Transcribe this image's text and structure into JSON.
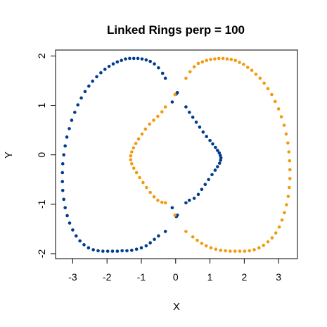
{
  "chart_data": {
    "type": "scatter",
    "title": "Linked Rings perp = 100",
    "xlabel": "X",
    "ylabel": "Y",
    "xlim": [
      -3.5,
      3.55
    ],
    "ylim": [
      -2.1,
      2.12
    ],
    "x_ticks": [
      -3,
      -2,
      -1,
      0,
      1,
      2,
      3
    ],
    "x_tick_labels": [
      "-3",
      "-2",
      "-1",
      "0",
      "1",
      "2",
      "3"
    ],
    "y_ticks": [
      -2,
      -1,
      0,
      1,
      2
    ],
    "y_tick_labels": [
      "-2",
      "-1",
      "0",
      "1",
      "2"
    ],
    "grid": false,
    "legend": "none",
    "series": [
      {
        "color": "#003c8c",
        "points": [
          [
            -0.3,
            1.55
          ],
          [
            -0.38,
            1.65
          ],
          [
            -0.5,
            1.76
          ],
          [
            -0.62,
            1.84
          ],
          [
            -0.74,
            1.89
          ],
          [
            -0.86,
            1.92
          ],
          [
            -0.98,
            1.94
          ],
          [
            -1.1,
            1.95
          ],
          [
            -1.22,
            1.95
          ],
          [
            -1.34,
            1.95
          ],
          [
            -1.46,
            1.94
          ],
          [
            -1.58,
            1.91
          ],
          [
            -1.7,
            1.88
          ],
          [
            -1.82,
            1.84
          ],
          [
            -1.94,
            1.79
          ],
          [
            -2.06,
            1.73
          ],
          [
            -2.18,
            1.66
          ],
          [
            -2.3,
            1.58
          ],
          [
            -2.42,
            1.49
          ],
          [
            -2.53,
            1.39
          ],
          [
            -2.64,
            1.28
          ],
          [
            -2.75,
            1.15
          ],
          [
            -2.85,
            1.01
          ],
          [
            -2.94,
            0.86
          ],
          [
            -3.03,
            0.7
          ],
          [
            -3.1,
            0.53
          ],
          [
            -3.17,
            0.36
          ],
          [
            -3.22,
            0.18
          ],
          [
            -3.26,
            0.0
          ],
          [
            -3.29,
            -0.18
          ],
          [
            -3.3,
            -0.36
          ],
          [
            -3.3,
            -0.54
          ],
          [
            -3.29,
            -0.72
          ],
          [
            -3.26,
            -0.9
          ],
          [
            -3.22,
            -1.07
          ],
          [
            -3.16,
            -1.23
          ],
          [
            -3.09,
            -1.38
          ],
          [
            -3.0,
            -1.52
          ],
          [
            -2.9,
            -1.64
          ],
          [
            -2.79,
            -1.74
          ],
          [
            -2.67,
            -1.82
          ],
          [
            -2.54,
            -1.88
          ],
          [
            -2.4,
            -1.92
          ],
          [
            -2.26,
            -1.94
          ],
          [
            -2.12,
            -1.95
          ],
          [
            -1.98,
            -1.95
          ],
          [
            -1.84,
            -1.95
          ],
          [
            -1.7,
            -1.95
          ],
          [
            -1.56,
            -1.94
          ],
          [
            -1.42,
            -1.94
          ],
          [
            -1.28,
            -1.93
          ],
          [
            -1.14,
            -1.91
          ],
          [
            -1.0,
            -1.88
          ],
          [
            -0.86,
            -1.84
          ],
          [
            -0.74,
            -1.78
          ],
          [
            -0.62,
            -1.71
          ],
          [
            -0.5,
            -1.64
          ],
          [
            -0.3,
            -1.55
          ],
          [
            -0.1,
            1.07
          ],
          [
            -0.1,
            -1.07
          ],
          [
            0.02,
            1.23
          ],
          [
            0.05,
            1.26
          ],
          [
            0.05,
            -1.22
          ],
          [
            0.02,
            -1.25
          ],
          [
            0.3,
            0.97
          ],
          [
            0.4,
            0.86
          ],
          [
            0.5,
            0.76
          ],
          [
            0.6,
            0.66
          ],
          [
            0.7,
            0.56
          ],
          [
            0.8,
            0.46
          ],
          [
            0.9,
            0.37
          ],
          [
            1.0,
            0.29
          ],
          [
            1.08,
            0.22
          ],
          [
            1.16,
            0.15
          ],
          [
            1.22,
            0.09
          ],
          [
            1.27,
            0.04
          ],
          [
            1.3,
            -0.01
          ],
          [
            1.32,
            -0.06
          ],
          [
            1.31,
            -0.11
          ],
          [
            1.28,
            -0.17
          ],
          [
            1.22,
            -0.24
          ],
          [
            1.15,
            -0.31
          ],
          [
            1.06,
            -0.4
          ],
          [
            0.96,
            -0.5
          ],
          [
            0.86,
            -0.6
          ],
          [
            0.76,
            -0.7
          ],
          [
            0.66,
            -0.8
          ],
          [
            0.54,
            -0.88
          ],
          [
            0.4,
            -0.92
          ],
          [
            0.3,
            -0.97
          ]
        ]
      },
      {
        "color": "#f29a0e",
        "points": [
          [
            0.3,
            1.55
          ],
          [
            0.42,
            1.68
          ],
          [
            0.54,
            1.78
          ],
          [
            0.66,
            1.85
          ],
          [
            0.78,
            1.88
          ],
          [
            0.9,
            1.91
          ],
          [
            1.02,
            1.93
          ],
          [
            1.14,
            1.94
          ],
          [
            1.26,
            1.95
          ],
          [
            1.38,
            1.95
          ],
          [
            1.5,
            1.94
          ],
          [
            1.62,
            1.93
          ],
          [
            1.74,
            1.91
          ],
          [
            1.86,
            1.87
          ],
          [
            1.98,
            1.83
          ],
          [
            2.1,
            1.77
          ],
          [
            2.22,
            1.71
          ],
          [
            2.34,
            1.63
          ],
          [
            2.46,
            1.55
          ],
          [
            2.58,
            1.45
          ],
          [
            2.69,
            1.34
          ],
          [
            2.8,
            1.22
          ],
          [
            2.9,
            1.08
          ],
          [
            3.0,
            0.93
          ],
          [
            3.08,
            0.77
          ],
          [
            3.16,
            0.6
          ],
          [
            3.22,
            0.42
          ],
          [
            3.27,
            0.24
          ],
          [
            3.3,
            0.06
          ],
          [
            3.32,
            -0.12
          ],
          [
            3.33,
            -0.3
          ],
          [
            3.33,
            -0.48
          ],
          [
            3.31,
            -0.66
          ],
          [
            3.28,
            -0.84
          ],
          [
            3.23,
            -1.01
          ],
          [
            3.17,
            -1.17
          ],
          [
            3.1,
            -1.32
          ],
          [
            3.02,
            -1.46
          ],
          [
            2.92,
            -1.58
          ],
          [
            2.81,
            -1.68
          ],
          [
            2.69,
            -1.76
          ],
          [
            2.56,
            -1.83
          ],
          [
            2.43,
            -1.88
          ],
          [
            2.29,
            -1.92
          ],
          [
            2.15,
            -1.94
          ],
          [
            2.01,
            -1.95
          ],
          [
            1.87,
            -1.95
          ],
          [
            1.73,
            -1.95
          ],
          [
            1.59,
            -1.95
          ],
          [
            1.45,
            -1.94
          ],
          [
            1.31,
            -1.93
          ],
          [
            1.17,
            -1.91
          ],
          [
            1.03,
            -1.88
          ],
          [
            0.89,
            -1.84
          ],
          [
            0.76,
            -1.79
          ],
          [
            0.63,
            -1.73
          ],
          [
            0.5,
            -1.66
          ],
          [
            0.3,
            -1.55
          ],
          [
            -0.3,
            0.97
          ],
          [
            -0.4,
            0.87
          ],
          [
            -0.52,
            0.78
          ],
          [
            -0.64,
            0.7
          ],
          [
            -0.76,
            0.62
          ],
          [
            -0.88,
            0.52
          ],
          [
            -0.98,
            0.42
          ],
          [
            -1.08,
            0.32
          ],
          [
            -1.16,
            0.23
          ],
          [
            -1.23,
            0.14
          ],
          [
            -1.28,
            0.06
          ],
          [
            -1.31,
            -0.02
          ],
          [
            -1.31,
            -0.1
          ],
          [
            -1.28,
            -0.18
          ],
          [
            -1.22,
            -0.27
          ],
          [
            -1.14,
            -0.36
          ],
          [
            -1.05,
            -0.46
          ],
          [
            -0.95,
            -0.56
          ],
          [
            -0.85,
            -0.66
          ],
          [
            -0.74,
            -0.76
          ],
          [
            -0.63,
            -0.85
          ],
          [
            -0.52,
            -0.92
          ],
          [
            -0.4,
            -0.96
          ],
          [
            -0.3,
            -0.97
          ],
          [
            -0.02,
            1.22
          ],
          [
            -0.02,
            -1.22
          ]
        ]
      }
    ]
  }
}
